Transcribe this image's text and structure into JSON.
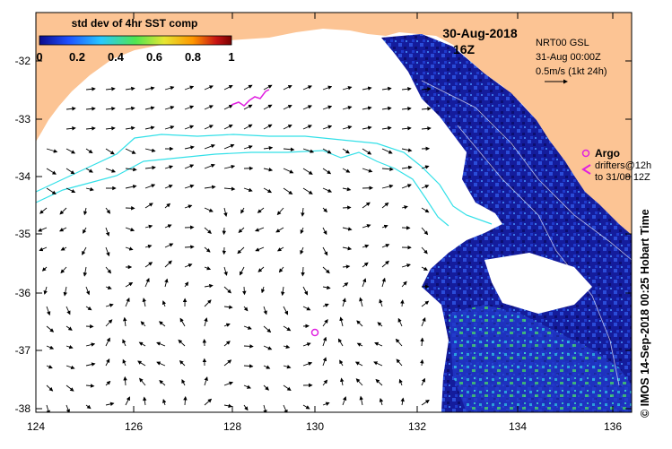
{
  "map": {
    "date": "30-Aug-2018",
    "hour": "16Z",
    "colorbar": {
      "title": "std dev of 4hr SST comp",
      "ticks": [
        "0",
        "0.2",
        "0.4",
        "0.6",
        "0.8",
        "1"
      ],
      "colors": [
        "#0a0a8c",
        "#1e50ff",
        "#28c8ff",
        "#50e650",
        "#e6e632",
        "#ff9600",
        "#c81414",
        "#780000"
      ]
    },
    "info": {
      "line1": "NRT00 GSL",
      "line2": "31-Aug 00:00Z",
      "line3": "0.5m/s (1kt 24h)"
    },
    "legend": {
      "argo": "Argo",
      "drifters1": "drifters@12h",
      "drifters2": "to 31/08 12Z"
    },
    "x_ticks": [
      "124",
      "126",
      "128",
      "130",
      "132",
      "134",
      "136"
    ],
    "y_ticks": [
      "-32",
      "-33",
      "-34",
      "-35",
      "-36",
      "-37",
      "-38"
    ],
    "credit": "© IMOS 14-Sep-2018 00:25 Hobart Time",
    "colors": {
      "land": "#fcc494",
      "ocean": "#ffffff",
      "contour": "#33e0e8",
      "argo": "#e020e0"
    }
  }
}
